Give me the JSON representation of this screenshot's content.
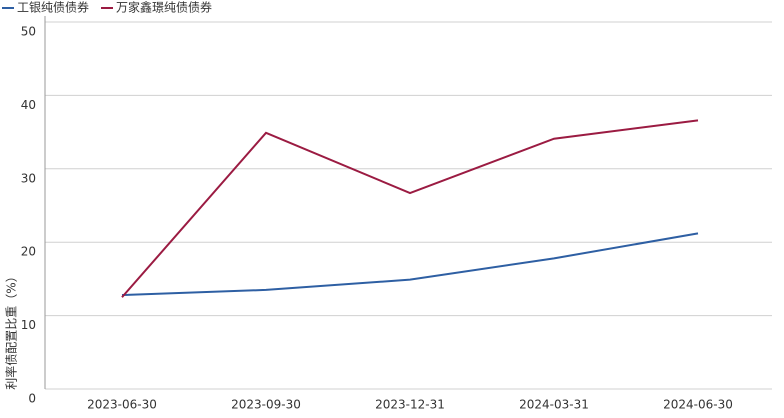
{
  "chart_data": {
    "type": "line",
    "y_label": "利率债配置比重（%）",
    "categories": [
      "2023-06-30",
      "2023-09-30",
      "2023-12-31",
      "2024-03-31",
      "2024-06-30"
    ],
    "series": [
      {
        "name": "工银纯债债券",
        "color": "#2e5fa3",
        "values": [
          12.8,
          13.5,
          14.9,
          17.8,
          21.2
        ]
      },
      {
        "name": "万家鑫璟纯债债券",
        "color": "#9b1b42",
        "values": [
          12.5,
          34.9,
          26.7,
          34.1,
          36.6
        ]
      }
    ],
    "ylim": [
      0,
      50
    ],
    "yticks": [
      0,
      10,
      20,
      30,
      40,
      50
    ],
    "grid": true,
    "legend": "top-left"
  }
}
